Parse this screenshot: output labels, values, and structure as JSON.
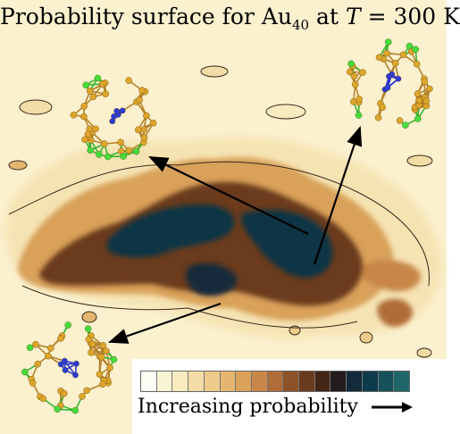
{
  "title": {
    "prefix": "Probability surface for Au",
    "subscript": "40",
    "middle": " at ",
    "variable": "T",
    "suffix": " = 300 K"
  },
  "legend": {
    "label": "Increasing probability",
    "colors": [
      "#fdfdf6",
      "#fbf4d4",
      "#f8ebbf",
      "#f3dca6",
      "#edcb8b",
      "#e4b66f",
      "#d9a15a",
      "#c88749",
      "#b06c39",
      "#8e5229",
      "#6a3a1f",
      "#442617",
      "#241b1c",
      "#122a3a",
      "#0d3b4c",
      "#15505b",
      "#1f6668"
    ]
  },
  "colors": {
    "background": "#fbf1cf",
    "atom_gold": "#dda52b",
    "atom_green": "#44dd3c",
    "atom_blue": "#2b3ad8",
    "bond_gold": "#b5822a"
  },
  "structures": [
    "cluster-top-left",
    "cluster-top-right",
    "cluster-bottom-left"
  ]
}
